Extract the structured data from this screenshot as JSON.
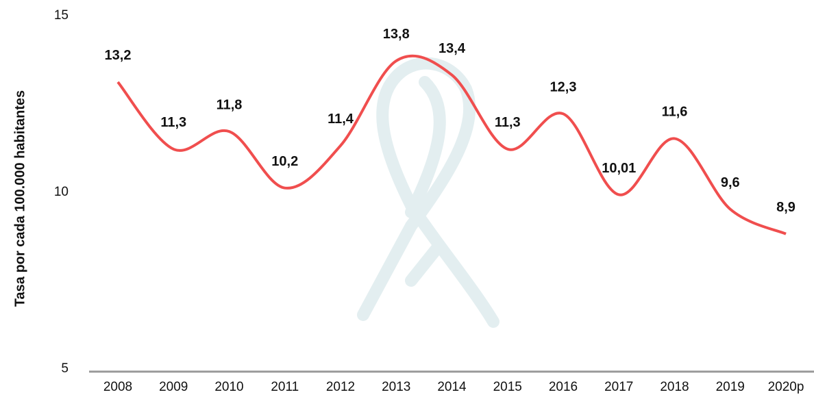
{
  "chart_data": {
    "type": "line",
    "y_axis_label": "Tasa por cada 100.000 habitantes",
    "categories": [
      "2008",
      "2009",
      "2010",
      "2011",
      "2012",
      "2013",
      "2014",
      "2015",
      "2016",
      "2017",
      "2018",
      "2019",
      "2020p"
    ],
    "series": [
      {
        "name": "Tasa",
        "color": "#f04e4e",
        "values": [
          13.2,
          11.3,
          11.8,
          10.2,
          11.4,
          13.8,
          13.4,
          11.3,
          12.3,
          10.01,
          11.6,
          9.6,
          8.9
        ],
        "value_labels": [
          "13,2",
          "11,3",
          "11,8",
          "10,2",
          "11,4",
          "13,8",
          "13,4",
          "11,3",
          "12,3",
          "10,01",
          "11,6",
          "9,6",
          "8,9"
        ]
      }
    ],
    "ylim": [
      5,
      15
    ],
    "yticks": [
      5,
      10,
      15
    ],
    "grid": false
  }
}
